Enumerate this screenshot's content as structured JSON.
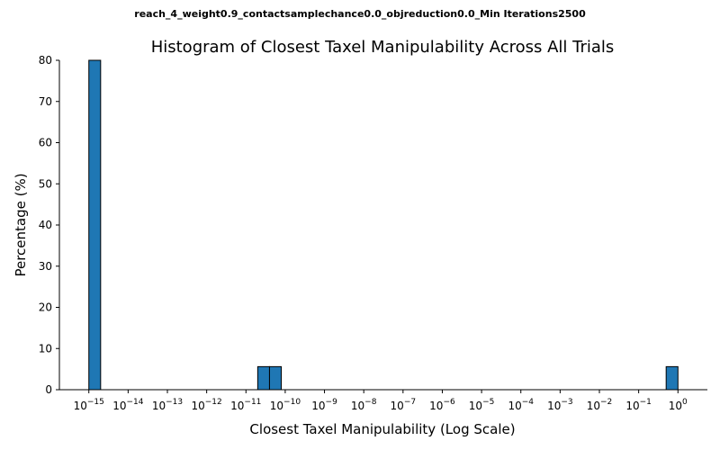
{
  "suptitle": "reach_4_weight0.9_contactsamplechance0.0_objreduction0.0_Min Iterations2500",
  "chart_data": {
    "type": "bar",
    "title": "Histogram of Closest Taxel Manipulability Across All Trials",
    "xlabel": "Closest Taxel Manipulability (Log Scale)",
    "ylabel": "Percentage (%)",
    "x_scale": "log",
    "xlim_exponent": [
      -15.75,
      0.75
    ],
    "ylim": [
      0,
      80
    ],
    "grid": false,
    "bar_color": "#1f77b4",
    "bar_edge_color": "#000000",
    "x_ticks": [
      {
        "base": "10",
        "exp": "−15",
        "value": -15
      },
      {
        "base": "10",
        "exp": "−14",
        "value": -14
      },
      {
        "base": "10",
        "exp": "−13",
        "value": -13
      },
      {
        "base": "10",
        "exp": "−12",
        "value": -12
      },
      {
        "base": "10",
        "exp": "−11",
        "value": -11
      },
      {
        "base": "10",
        "exp": "−10",
        "value": -10
      },
      {
        "base": "10",
        "exp": "−9",
        "value": -9
      },
      {
        "base": "10",
        "exp": "−8",
        "value": -8
      },
      {
        "base": "10",
        "exp": "−7",
        "value": -7
      },
      {
        "base": "10",
        "exp": "−6",
        "value": -6
      },
      {
        "base": "10",
        "exp": "−5",
        "value": -5
      },
      {
        "base": "10",
        "exp": "−4",
        "value": -4
      },
      {
        "base": "10",
        "exp": "−3",
        "value": -3
      },
      {
        "base": "10",
        "exp": "−2",
        "value": -2
      },
      {
        "base": "10",
        "exp": "−1",
        "value": -1
      },
      {
        "base": "10",
        "exp": "0",
        "value": 0
      }
    ],
    "y_ticks": [
      0,
      10,
      20,
      30,
      40,
      50,
      60,
      70,
      80
    ],
    "bins": [
      {
        "x_start": -15.0,
        "x_end": -14.7,
        "percent": 80
      },
      {
        "x_start": -10.7,
        "x_end": -10.4,
        "percent": 5.6
      },
      {
        "x_start": -10.4,
        "x_end": -10.1,
        "percent": 5.6
      },
      {
        "x_start": -0.3,
        "x_end": 0.0,
        "percent": 5.6
      }
    ]
  }
}
